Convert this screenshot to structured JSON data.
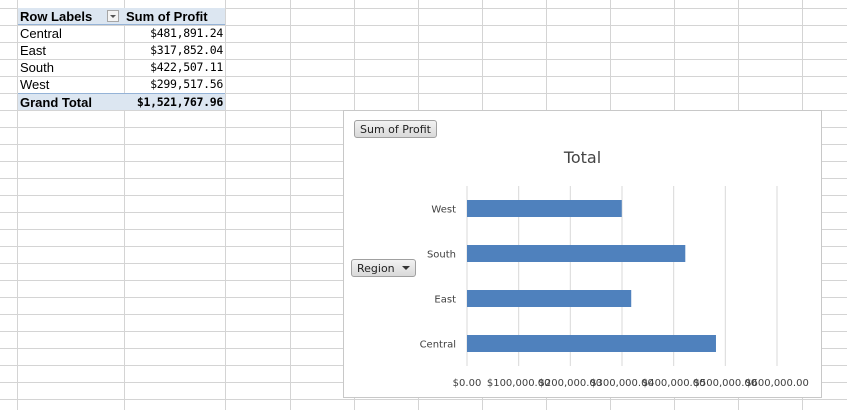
{
  "pivot": {
    "header_label": "Row Labels",
    "header_value": "Sum of Profit",
    "rows": [
      {
        "label": "Central",
        "value": "$481,891.24"
      },
      {
        "label": "East",
        "value": "$317,852.04"
      },
      {
        "label": "South",
        "value": "$422,507.11"
      },
      {
        "label": "West",
        "value": "$299,517.56"
      }
    ],
    "total_label": "Grand Total",
    "total_value": "$1,521,767.96"
  },
  "chart": {
    "value_field_button": "Sum of Profit",
    "axis_field_button": "Region",
    "bar_color": "#4f81bd"
  },
  "chart_data": {
    "type": "bar",
    "orientation": "horizontal",
    "title": "Total",
    "categories": [
      "West",
      "South",
      "East",
      "Central"
    ],
    "values": [
      299517.56,
      422507.11,
      317852.04,
      481891.24
    ],
    "xlim": [
      0,
      600000
    ],
    "xticks": [
      "$0.00",
      "$100,000.00",
      "$200,000.00",
      "$300,000.00",
      "$400,000.00",
      "$500,000.00",
      "$600,000.00"
    ],
    "grid": true,
    "legend": "none"
  }
}
